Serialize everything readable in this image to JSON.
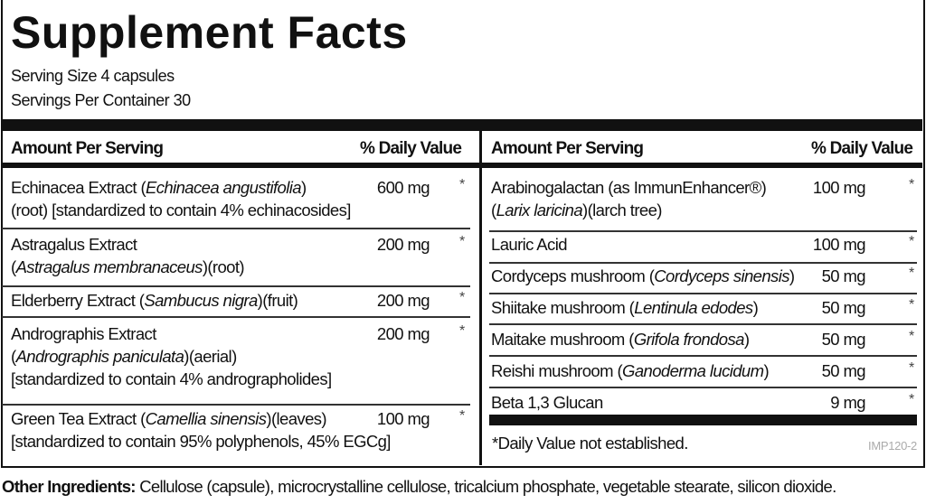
{
  "title": "Supplement Facts",
  "serving_size": "Serving Size 4 capsules",
  "servings_per_container": "Servings Per Container 30",
  "header": {
    "amount_per_serving": "Amount Per Serving",
    "daily_value": "% Daily Value"
  },
  "left_rows": [
    {
      "lines": [
        [
          {
            "t": "Echinacea Extract ("
          },
          {
            "t": "Echinacea angustifolia",
            "i": true
          },
          {
            "t": ")"
          }
        ],
        [
          {
            "t": " (root) [standardized to contain 4% echinacosides]"
          }
        ]
      ],
      "amount": "600 mg",
      "dv": "*"
    },
    {
      "lines": [
        [
          {
            "t": "Astragalus Extract"
          }
        ],
        [
          {
            "t": " ("
          },
          {
            "t": "Astragalus membranaceus",
            "i": true
          },
          {
            "t": ")(root)"
          }
        ]
      ],
      "amount": "200 mg",
      "dv": "*"
    },
    {
      "lines": [
        [
          {
            "t": "Elderberry Extract ("
          },
          {
            "t": "Sambucus nigra",
            "i": true
          },
          {
            "t": ")(fruit)"
          }
        ]
      ],
      "amount": "200 mg",
      "dv": "*"
    },
    {
      "lines": [
        [
          {
            "t": "Andrographis Extract"
          }
        ],
        [
          {
            "t": " ("
          },
          {
            "t": "Andrographis paniculata",
            "i": true
          },
          {
            "t": ")(aerial)"
          }
        ],
        [
          {
            "t": " [standardized to contain 4% andrographolides]"
          }
        ]
      ],
      "amount": "200 mg",
      "dv": "*"
    },
    {
      "lines": [
        [
          {
            "t": "Green Tea Extract ("
          },
          {
            "t": "Camellia sinensis",
            "i": true
          },
          {
            "t": ")(leaves)"
          }
        ],
        [
          {
            "t": " [standardized to contain 95% polyphenols, 45% EGCg]"
          }
        ]
      ],
      "amount": "100 mg",
      "dv": "*"
    }
  ],
  "right_rows": [
    {
      "lines": [
        [
          {
            "t": "Arabinogalactan (as ImmunEnhancer®)"
          }
        ],
        [
          {
            "t": " ("
          },
          {
            "t": "Larix laricina",
            "i": true
          },
          {
            "t": ")(larch tree)"
          }
        ]
      ],
      "amount": "100 mg",
      "dv": "*"
    },
    {
      "lines": [
        [
          {
            "t": "Lauric Acid"
          }
        ]
      ],
      "amount": "100 mg",
      "dv": "*"
    },
    {
      "lines": [
        [
          {
            "t": "Cordyceps mushroom ("
          },
          {
            "t": "Cordyceps sinensis",
            "i": true
          },
          {
            "t": ")"
          }
        ]
      ],
      "amount": "50 mg",
      "dv": "*"
    },
    {
      "lines": [
        [
          {
            "t": "Shiitake mushroom ("
          },
          {
            "t": "Lentinula edodes",
            "i": true
          },
          {
            "t": ")"
          }
        ]
      ],
      "amount": "50 mg",
      "dv": "*"
    },
    {
      "lines": [
        [
          {
            "t": "Maitake mushroom ("
          },
          {
            "t": "Grifola frondosa",
            "i": true
          },
          {
            "t": ")"
          }
        ]
      ],
      "amount": "50 mg",
      "dv": "*"
    },
    {
      "lines": [
        [
          {
            "t": "Reishi mushroom ("
          },
          {
            "t": "Ganoderma lucidum",
            "i": true
          },
          {
            "t": ")"
          }
        ]
      ],
      "amount": "50 mg",
      "dv": "*"
    },
    {
      "lines": [
        [
          {
            "t": "Beta 1,3 Glucan"
          }
        ]
      ],
      "amount": "9 mg",
      "dv": "*"
    }
  ],
  "footnote": "*Daily Value not established.",
  "product_code": "IMP120-2",
  "other_ingredients": {
    "label": "Other Ingredients:",
    "text": " Cellulose (capsule), microcrystalline cellulose, tricalcium phosphate, vegetable stearate, silicon dioxide."
  }
}
